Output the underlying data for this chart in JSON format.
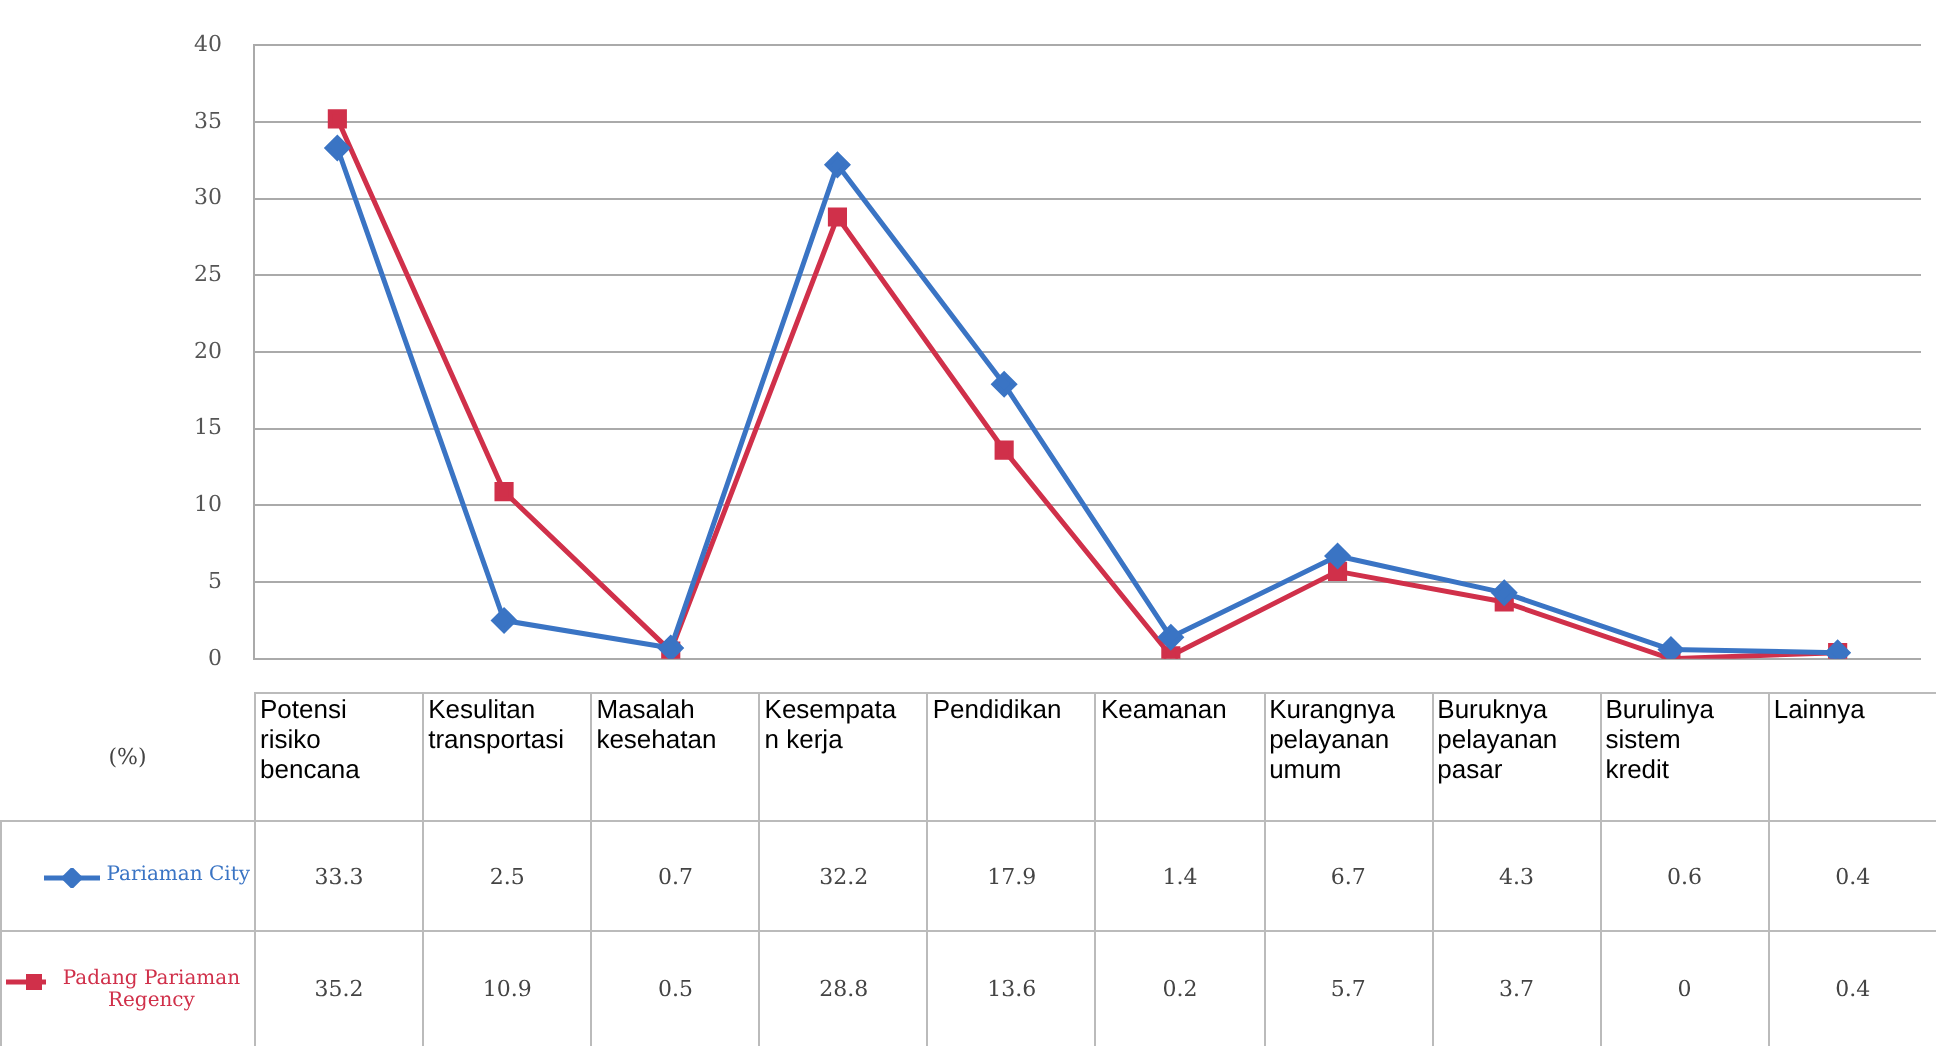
{
  "chart_data": {
    "type": "line",
    "ylabel": "(%)",
    "categories": [
      "Potensi risiko bencana",
      "Kesulitan transportasi",
      "Masalah kesehatan",
      "Kesempatan kerja",
      "Pendidikan",
      "Keamanan",
      "Kurangnya pelayanan umum",
      "Buruknya pelayanan pasar",
      "Burulinya sistem kredit",
      "Lainnya"
    ],
    "series": [
      {
        "name": "Pariaman City",
        "color": "#3a74c4",
        "marker": "diamond",
        "values": [
          33.3,
          2.5,
          0.7,
          32.2,
          17.9,
          1.4,
          6.7,
          4.3,
          0.6,
          0.4
        ]
      },
      {
        "name": "Padang Pariaman Regency",
        "color": "#d0304a",
        "marker": "square",
        "values": [
          35.2,
          10.9,
          0.5,
          28.8,
          13.6,
          0.2,
          5.7,
          3.7,
          0,
          0.4
        ]
      }
    ],
    "ylim": [
      0,
      40
    ],
    "yticks": [
      0,
      5,
      10,
      15,
      20,
      25,
      30,
      35,
      40
    ],
    "grid": "y",
    "legend": "bottom",
    "data_labels": true
  }
}
